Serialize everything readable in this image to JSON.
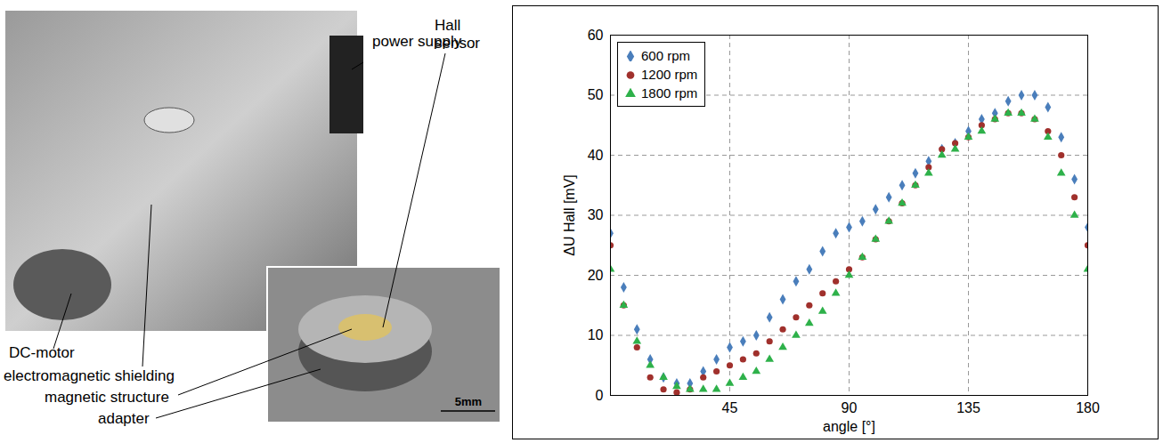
{
  "chart_data": {
    "type": "scatter",
    "xlabel": "angle [°]",
    "ylabel": "ΔU Hall [mV]",
    "xlim": [
      0,
      180
    ],
    "xticks": [
      45,
      90,
      135,
      180
    ],
    "ylim": [
      0,
      60
    ],
    "yticks": [
      0,
      10,
      20,
      30,
      40,
      50,
      60
    ],
    "grid": true,
    "legend": "top-left",
    "x": [
      0,
      5,
      10,
      15,
      20,
      25,
      30,
      35,
      40,
      45,
      50,
      55,
      60,
      65,
      70,
      75,
      80,
      85,
      90,
      95,
      100,
      105,
      110,
      115,
      120,
      125,
      130,
      135,
      140,
      145,
      150,
      155,
      160,
      165,
      170,
      175,
      180
    ],
    "series": [
      {
        "name": "600 rpm",
        "color": "#4a7ebb",
        "marker": "diamond",
        "values": [
          27,
          18,
          11,
          6,
          3,
          2,
          2,
          4,
          6,
          8,
          9,
          10,
          13,
          16,
          19,
          21,
          24,
          27,
          28,
          29,
          31,
          33,
          35,
          37,
          39,
          41,
          42,
          44,
          46,
          47,
          49,
          50,
          50,
          48,
          43,
          36,
          28
        ]
      },
      {
        "name": "1200 rpm",
        "color": "#a0302c",
        "marker": "circle",
        "values": [
          25,
          15,
          8,
          3,
          1,
          0.5,
          1,
          3,
          4,
          5,
          6,
          7,
          9,
          11,
          13,
          15,
          17,
          19,
          21,
          23,
          26,
          29,
          32,
          35,
          38,
          41,
          42,
          43,
          45,
          46,
          47,
          47,
          46,
          44,
          40,
          33,
          25
        ]
      },
      {
        "name": "1800 rpm",
        "color": "#2eb14a",
        "marker": "triangle",
        "values": [
          21,
          15,
          9,
          5,
          3,
          1.5,
          1,
          1,
          1,
          2,
          3,
          4,
          6,
          8,
          10,
          12,
          14,
          17,
          20,
          23,
          26,
          29,
          32,
          35,
          37,
          40,
          41,
          43,
          44,
          46,
          47,
          47,
          46,
          43,
          37,
          30,
          21
        ]
      }
    ]
  },
  "photo": {
    "labels": [
      "power supply",
      "Hall sensor",
      "DC-motor",
      "electromagnetic shielding",
      "magnetic structure",
      "adapter"
    ],
    "scale_bar": "5mm"
  }
}
